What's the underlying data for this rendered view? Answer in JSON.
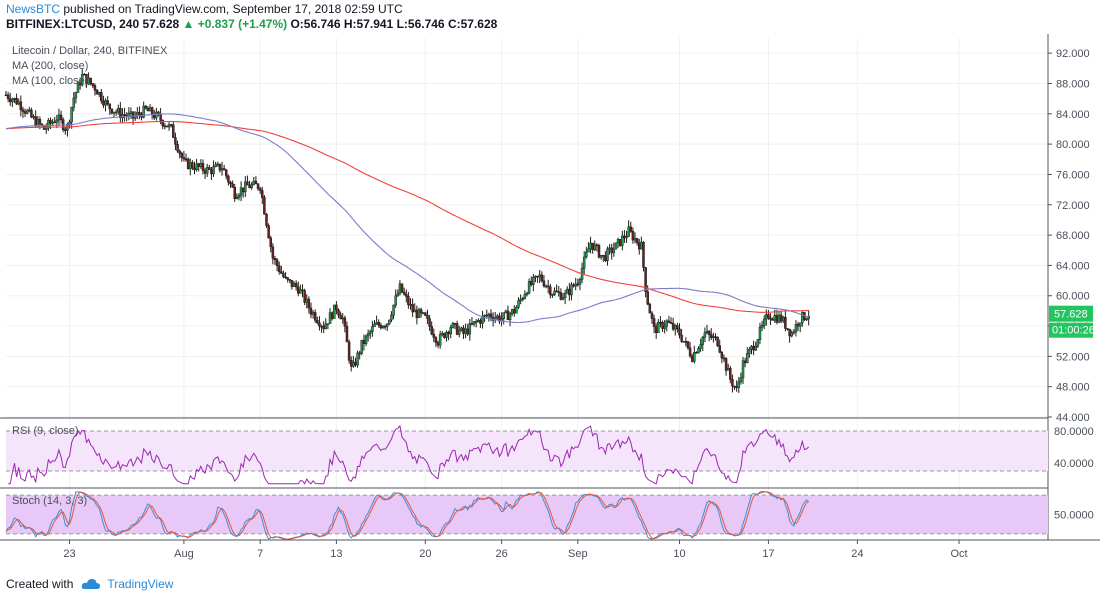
{
  "header": {
    "author": "NewsBTC",
    "published_text": "published on TradingView.com, September 17, 2018 02:59 UTC",
    "symbol": "BITFINEX:LTCUSD, 240",
    "last": "57.628",
    "change": "▲ +0.837 (+1.47%)",
    "ohlc_o": "O:56.746",
    "ohlc_h": "H:57.941",
    "ohlc_l": "L:56.746",
    "ohlc_c": "C:57.628"
  },
  "footer": {
    "created_with": "Created with",
    "brand": "TradingView"
  },
  "colors": {
    "up": "#1f9e4a",
    "down": "#6b1f1f",
    "ma200": "#f2423d",
    "ma100": "#7c7cc8",
    "rsi": "#9c27b0",
    "stoch_k": "#3d8fd6",
    "stoch_d": "#e4573b",
    "band_rsi": "#f4e5fb",
    "band_stoch": "#e7c8f7",
    "last_label": "#22c55e"
  },
  "chart_data": [
    {
      "type": "candlestick",
      "legend": [
        "Litecoin / Dollar, 240, BITFINEX",
        "MA (200, close)",
        "MA (100, close)"
      ],
      "y_ticks": [
        "92.000",
        "88.000",
        "84.000",
        "80.000",
        "76.000",
        "72.000",
        "68.000",
        "64.000",
        "60.000",
        "56.000",
        "52.000",
        "48.000",
        "44.000"
      ],
      "ylim": [
        44,
        94
      ],
      "last_price": "57.628",
      "countdown": "01:00:26",
      "x_ticks": [
        "23",
        "Aug",
        "7",
        "13",
        "20",
        "26",
        "Sep",
        "10",
        "17",
        "24",
        "Oct"
      ],
      "x_tick_days": [
        23,
        32,
        38,
        44,
        51,
        57,
        63,
        71,
        78,
        85,
        93
      ],
      "x_days_range": [
        18,
        100
      ],
      "price_path": [
        [
          18.0,
          86.5
        ],
        [
          19.0,
          85.5
        ],
        [
          20.0,
          83.5
        ],
        [
          21.0,
          82.0
        ],
        [
          22.0,
          83.5
        ],
        [
          22.8,
          82.0
        ],
        [
          23.3,
          86.0
        ],
        [
          24.0,
          89.0
        ],
        [
          25.0,
          87.5
        ],
        [
          26.0,
          85.0
        ],
        [
          27.0,
          84.0
        ],
        [
          28.0,
          83.5
        ],
        [
          29.0,
          84.5
        ],
        [
          30.0,
          83.5
        ],
        [
          31.0,
          82.0
        ],
        [
          32.0,
          77.5
        ],
        [
          33.0,
          77.0
        ],
        [
          34.0,
          76.5
        ],
        [
          35.0,
          77.0
        ],
        [
          36.0,
          73.5
        ],
        [
          37.0,
          74.5
        ],
        [
          38.0,
          74.5
        ],
        [
          39.0,
          65.0
        ],
        [
          40.0,
          62.0
        ],
        [
          41.0,
          61.0
        ],
        [
          42.0,
          58.0
        ],
        [
          43.0,
          56.0
        ],
        [
          44.0,
          58.5
        ],
        [
          44.5,
          57.0
        ],
        [
          45.2,
          50.0
        ],
        [
          46.0,
          53.5
        ],
        [
          47.0,
          56.0
        ],
        [
          48.0,
          56.5
        ],
        [
          49.0,
          61.0
        ],
        [
          50.0,
          58.0
        ],
        [
          51.0,
          57.0
        ],
        [
          52.0,
          54.0
        ],
        [
          53.0,
          56.0
        ],
        [
          54.0,
          55.0
        ],
        [
          55.0,
          56.5
        ],
        [
          56.0,
          57.5
        ],
        [
          57.0,
          57.0
        ],
        [
          58.0,
          58.0
        ],
        [
          59.0,
          61.0
        ],
        [
          60.0,
          62.5
        ],
        [
          61.0,
          60.5
        ],
        [
          62.0,
          60.0
        ],
        [
          63.0,
          62.0
        ],
        [
          64.0,
          67.0
        ],
        [
          65.0,
          65.0
        ],
        [
          66.0,
          66.5
        ],
        [
          67.0,
          68.5
        ],
        [
          68.0,
          66.5
        ],
        [
          68.4,
          60.0
        ],
        [
          69.0,
          55.5
        ],
        [
          70.0,
          56.5
        ],
        [
          71.0,
          55.0
        ],
        [
          72.0,
          52.0
        ],
        [
          73.0,
          55.0
        ],
        [
          74.0,
          54.0
        ],
        [
          75.0,
          49.0
        ],
        [
          75.5,
          47.5
        ],
        [
          76.0,
          51.0
        ],
        [
          77.0,
          54.0
        ],
        [
          78.0,
          57.5
        ],
        [
          79.0,
          57.0
        ],
        [
          79.8,
          55.0
        ],
        [
          80.5,
          57.0
        ],
        [
          81.2,
          57.6
        ]
      ]
    },
    {
      "type": "line",
      "title": "RSI (9, close)",
      "y_ticks": [
        "80.0000",
        "40.0000"
      ],
      "ylim": [
        10,
        95
      ]
    },
    {
      "type": "line",
      "title": "Stoch (14, 3, 3)",
      "y_ticks": [
        "50.0000"
      ],
      "ylim": [
        0,
        100
      ]
    }
  ]
}
